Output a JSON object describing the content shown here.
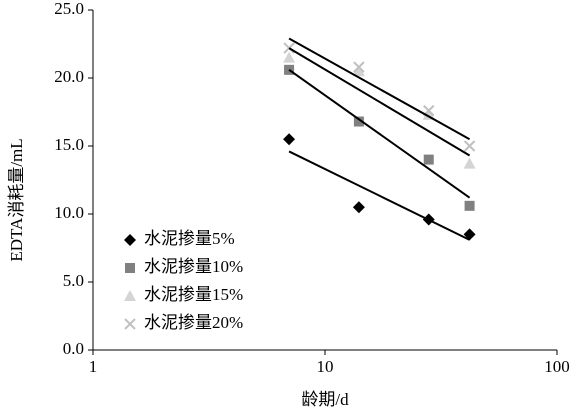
{
  "chart_data": {
    "type": "scatter",
    "x_label": "龄期/d",
    "y_label": "EDTA消耗量/mL",
    "x": [
      7,
      14,
      28,
      42
    ],
    "trend_x": [
      7,
      42
    ],
    "xlim": [
      1,
      100
    ],
    "xticks": [
      1,
      10,
      100
    ],
    "xscale": "log",
    "ylim": [
      0,
      25
    ],
    "yticks": [
      {
        "value": 0,
        "label": "0.0"
      },
      {
        "value": 5,
        "label": "5.0"
      },
      {
        "value": 10,
        "label": "10.0"
      },
      {
        "value": 15,
        "label": "15.0"
      },
      {
        "value": 20,
        "label": "20.0"
      },
      {
        "value": 25,
        "label": "25.0"
      }
    ],
    "legend": "left",
    "series": [
      {
        "name": "水泥掺量5%",
        "color": "#000000",
        "marker": "diamond",
        "values": [
          15.5,
          10.5,
          9.6,
          8.5
        ],
        "trend": [
          14.6,
          8.1
        ]
      },
      {
        "name": "水泥掺量10%",
        "color": "#808080",
        "marker": "square",
        "values": [
          20.6,
          16.8,
          14.0,
          10.6
        ],
        "trend": [
          20.6,
          11.2
        ]
      },
      {
        "name": "水泥掺量15%",
        "color": "#d4d4d4",
        "marker": "triangle",
        "values": [
          21.5,
          20.5,
          17.3,
          13.7
        ],
        "trend": [
          22.2,
          14.3
        ]
      },
      {
        "name": "水泥掺量20%",
        "color": "#c0c0c0",
        "marker": "cross",
        "values": [
          22.2,
          20.8,
          17.6,
          15.0
        ],
        "trend": [
          22.9,
          15.5
        ]
      }
    ]
  }
}
